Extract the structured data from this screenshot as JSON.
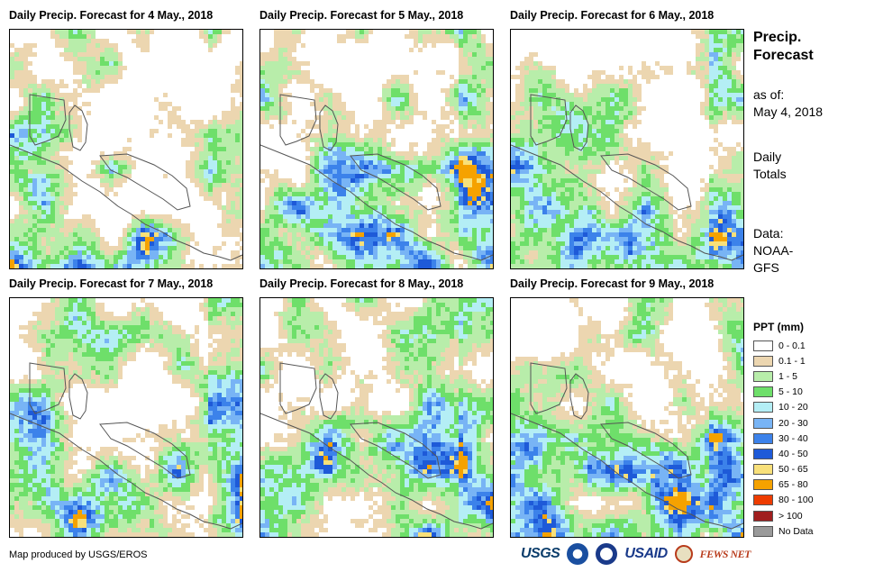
{
  "panels": [
    {
      "title": "Daily Precip. Forecast for 4 May., 2018"
    },
    {
      "title": "Daily Precip. Forecast for 5 May., 2018"
    },
    {
      "title": "Daily Precip. Forecast for 6 May., 2018"
    },
    {
      "title": "Daily Precip. Forecast for 7 May., 2018"
    },
    {
      "title": "Daily Precip. Forecast for 8 May., 2018"
    },
    {
      "title": "Daily Precip. Forecast for 9 May., 2018"
    }
  ],
  "sidebar": {
    "title_line1": "Precip.",
    "title_line2": "Forecast",
    "asof_label": "as of:",
    "asof_date": "May 4, 2018",
    "totals_line1": "Daily",
    "totals_line2": "Totals",
    "data_line1": "Data:",
    "data_line2": "NOAA-",
    "data_line3": "GFS"
  },
  "legend": {
    "title": "PPT (mm)",
    "items": [
      {
        "label": "0 - 0.1",
        "color": "#ffffff"
      },
      {
        "label": "0.1 - 1",
        "color": "#ecd6b0"
      },
      {
        "label": "1 - 5",
        "color": "#b8edaa"
      },
      {
        "label": "5 - 10",
        "color": "#6edf6a"
      },
      {
        "label": "10 - 20",
        "color": "#b4eef5"
      },
      {
        "label": "20 - 30",
        "color": "#78b4f5"
      },
      {
        "label": "30 - 40",
        "color": "#3c82ea"
      },
      {
        "label": "40 - 50",
        "color": "#1e5ad8"
      },
      {
        "label": "50 - 65",
        "color": "#f8e07a"
      },
      {
        "label": "65 - 80",
        "color": "#f5a200"
      },
      {
        "label": "80 - 100",
        "color": "#ee3c00"
      },
      {
        "label": "> 100",
        "color": "#a01e1e"
      },
      {
        "label": "No Data",
        "color": "#9a9a9a"
      }
    ]
  },
  "footer": {
    "credit": "Map produced by USGS/EROS",
    "logo_usgs": "USGS",
    "logo_usaid": "USAID",
    "logo_fews": "FEWS NET"
  }
}
